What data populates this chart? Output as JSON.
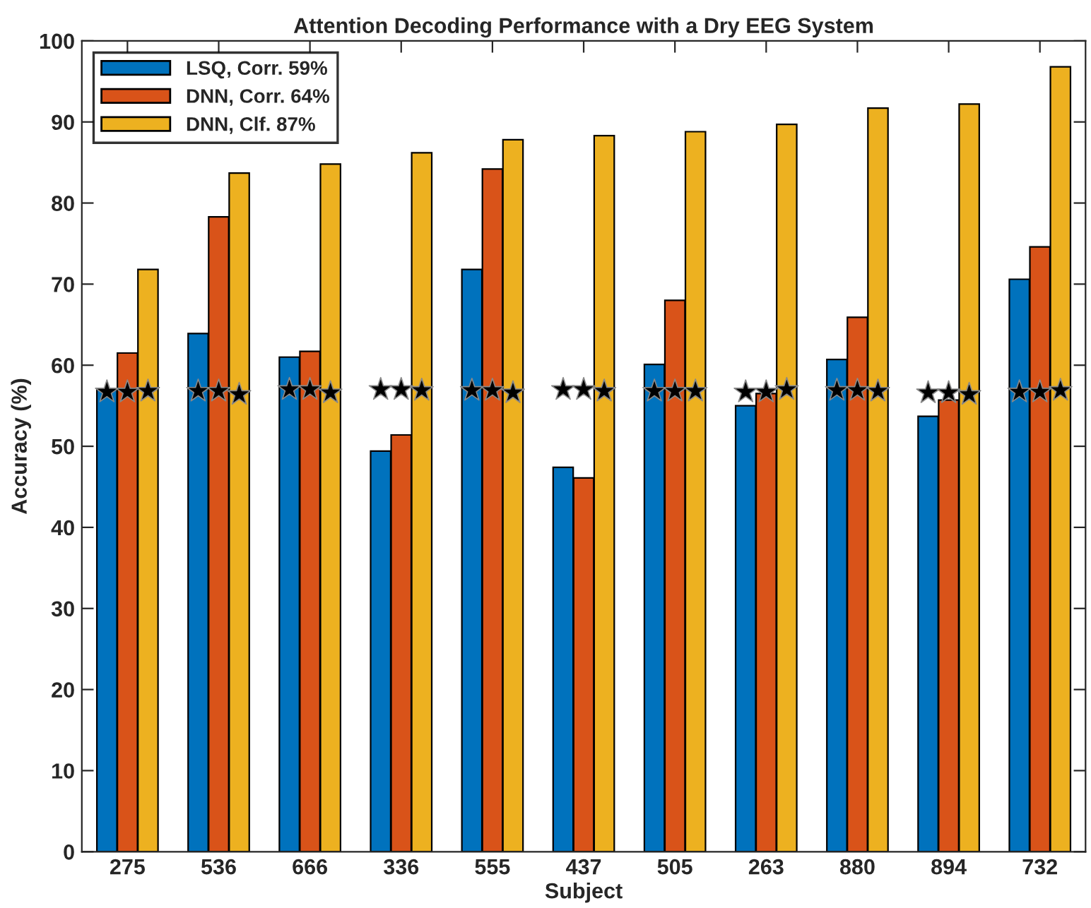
{
  "chart_data": {
    "type": "bar",
    "title": "Attention Decoding Performance with a Dry EEG System",
    "xlabel": "Subject",
    "ylabel": "Accuracy (%)",
    "categories": [
      "275",
      "536",
      "666",
      "336",
      "555",
      "437",
      "505",
      "263",
      "880",
      "894",
      "732"
    ],
    "series": [
      {
        "name": "LSQ, Corr. 59%",
        "color": "#0072bd",
        "values": [
          57.0,
          63.9,
          61.0,
          49.4,
          71.8,
          47.4,
          60.1,
          55.0,
          60.7,
          53.7,
          70.6
        ]
      },
      {
        "name": "DNN, Corr. 64%",
        "color": "#d95319",
        "values": [
          61.5,
          78.3,
          61.7,
          51.4,
          84.2,
          46.1,
          68.0,
          56.5,
          65.9,
          55.7,
          74.6
        ]
      },
      {
        "name": "DNN, Clf. 87%",
        "color": "#edb120",
        "values": [
          71.8,
          83.7,
          84.8,
          86.2,
          87.8,
          88.3,
          88.8,
          89.7,
          91.7,
          92.2,
          96.8
        ]
      },
      {
        "type": "scatter",
        "color": "#000000",
        "marker": "star",
        "x": [
          "275",
          "536",
          "666",
          "336",
          "555",
          "437",
          "505",
          "263",
          "880",
          "894",
          "732"
        ],
        "values": [
          56.7,
          56.8,
          57.0,
          57.0,
          56.9,
          57.0,
          56.8,
          56.7,
          56.9,
          56.6,
          56.7
        ]
      },
      {
        "type": "scatter",
        "color": "#000000",
        "marker": "star",
        "x": [
          "275",
          "536",
          "666",
          "336",
          "555",
          "437",
          "505",
          "263",
          "880",
          "894",
          "732"
        ],
        "values": [
          56.7,
          56.8,
          57.0,
          57.0,
          56.9,
          57.0,
          56.8,
          56.7,
          56.9,
          56.6,
          56.7
        ]
      },
      {
        "type": "scatter",
        "color": "#000000",
        "marker": "star",
        "x": [
          "275",
          "536",
          "666",
          "336",
          "555",
          "437",
          "505",
          "263",
          "880",
          "894",
          "732"
        ],
        "values": [
          56.8,
          56.4,
          56.6,
          56.9,
          56.6,
          56.8,
          56.8,
          57.0,
          56.8,
          56.4,
          56.9
        ]
      }
    ],
    "ylim": [
      0,
      100
    ],
    "yticks": [
      0,
      10,
      20,
      30,
      40,
      50,
      60,
      70,
      80,
      90,
      100
    ],
    "grid": false,
    "legend": "top left"
  }
}
